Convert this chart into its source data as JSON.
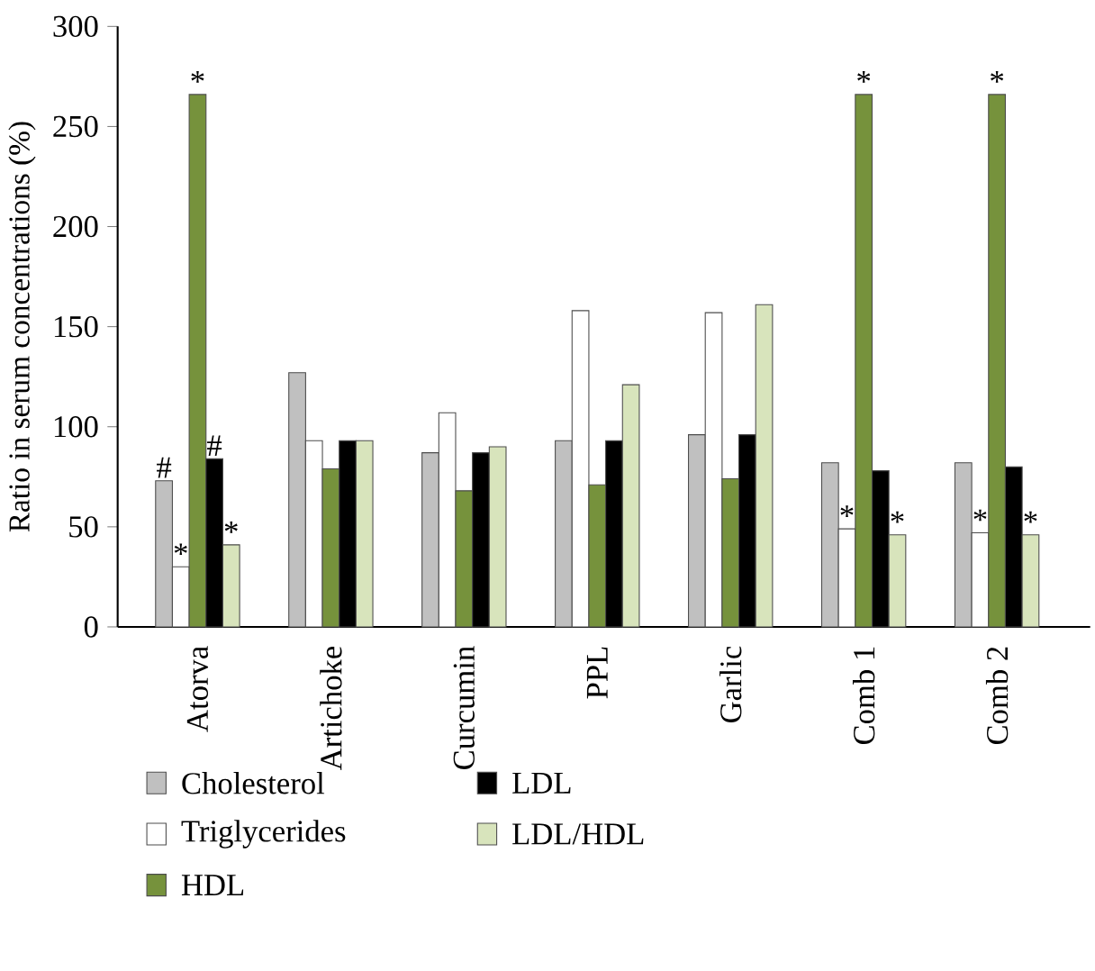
{
  "chart_data": {
    "type": "bar",
    "ylabel": "Ratio in serum concentrations (%)",
    "categories": [
      "Atorva",
      "Artichoke",
      "Curcumin",
      "PPL",
      "Garlic",
      "Comb 1",
      "Comb 2"
    ],
    "series": [
      {
        "name": "Cholesterol",
        "color": "#c0c0c0",
        "values": [
          73,
          127,
          87,
          93,
          96,
          82,
          82
        ]
      },
      {
        "name": "Triglycerides",
        "color": "#ffffff",
        "values": [
          30,
          93,
          107,
          158,
          157,
          49,
          47
        ]
      },
      {
        "name": "HDL",
        "color": "#76923c",
        "values": [
          266,
          79,
          68,
          71,
          74,
          266,
          266
        ]
      },
      {
        "name": "LDL",
        "color": "#000000",
        "values": [
          84,
          93,
          87,
          93,
          96,
          78,
          80
        ]
      },
      {
        "name": "LDL/HDL",
        "color": "#d8e4bc",
        "values": [
          41,
          93,
          90,
          121,
          161,
          46,
          46
        ]
      }
    ],
    "ylim": [
      0,
      300
    ],
    "yticks": [
      0,
      50,
      100,
      150,
      200,
      250,
      300
    ],
    "legend": "bottom",
    "annotations": [
      {
        "text": "#",
        "x": "Atorva",
        "y": 73
      },
      {
        "text": "*",
        "x": "Atorva",
        "y": 30
      },
      {
        "text": "*",
        "x": "Atorva",
        "y": 266
      },
      {
        "text": "#",
        "x": "Atorva",
        "y": 84
      },
      {
        "text": "*",
        "x": "Atorva",
        "y": 41
      },
      {
        "text": "*",
        "x": "Comb 1",
        "y": 49
      },
      {
        "text": "*",
        "x": "Comb 1",
        "y": 266
      },
      {
        "text": "*",
        "x": "Comb 1",
        "y": 46
      },
      {
        "text": "*",
        "x": "Comb 2",
        "y": 47
      },
      {
        "text": "*",
        "x": "Comb 2",
        "y": 266
      },
      {
        "text": "*",
        "x": "Comb 2",
        "y": 46
      }
    ]
  }
}
